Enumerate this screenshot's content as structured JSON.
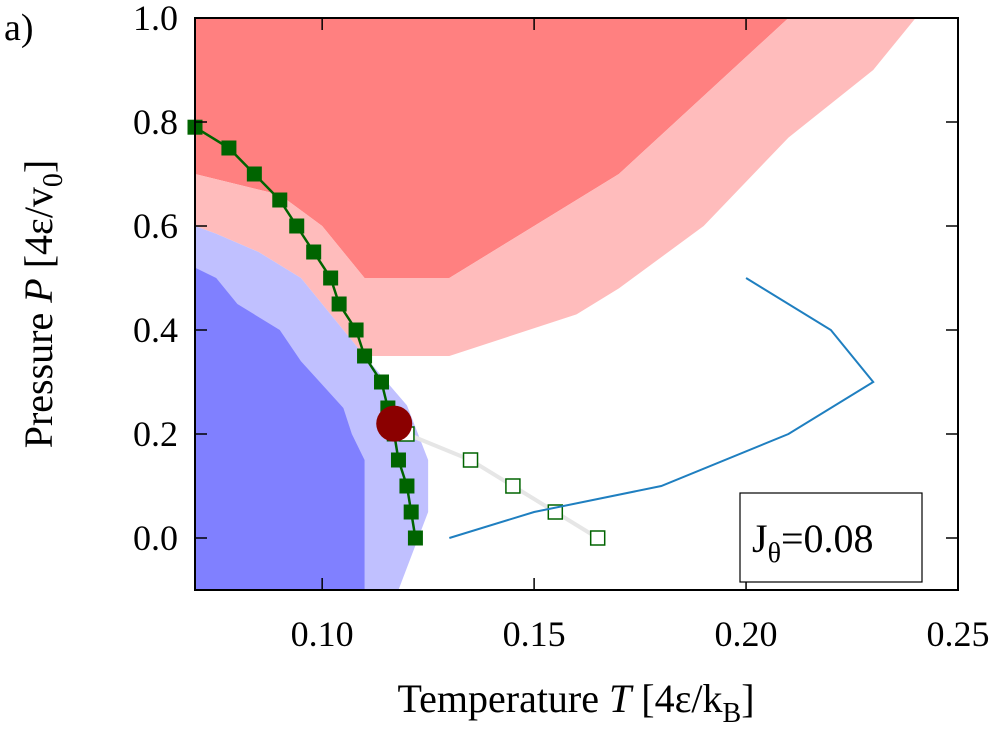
{
  "panel_label": "a)",
  "chart_data": {
    "type": "line",
    "xlabel": "Temperature T [4ε/k_B]",
    "xlabel_parts": {
      "pre": "Temperature ",
      "var": "T",
      "post": " [4ε/k",
      "sub": "B",
      "end": "]"
    },
    "ylabel_parts": {
      "pre": "Pressure ",
      "var": "P",
      "post": " [4ε/v",
      "sub": "0",
      "end": "]"
    },
    "ylabel": "Pressure P [4ε/v_0]",
    "xlim": [
      0.07,
      0.25
    ],
    "ylim": [
      -0.1,
      1.0
    ],
    "xticks": [
      0.1,
      0.15,
      0.2,
      0.25
    ],
    "xtick_labels": [
      "0.10",
      "0.15",
      "0.20",
      "0.25"
    ],
    "yticks": [
      0.0,
      0.2,
      0.4,
      0.6,
      0.8,
      1.0
    ],
    "ytick_labels": [
      "0.0",
      "0.2",
      "0.4",
      "0.6",
      "0.8",
      "1.0"
    ],
    "grid": false,
    "legend": {
      "text_main": "J",
      "text_sub": "θ",
      "text_rest": "=0.08",
      "placement": "bottom-right"
    },
    "regions": [
      {
        "color": "#ff8080",
        "points": [
          [
            0.07,
            1.0
          ],
          [
            0.07,
            0.7
          ],
          [
            0.09,
            0.66
          ],
          [
            0.1,
            0.6
          ],
          [
            0.11,
            0.5
          ],
          [
            0.13,
            0.5
          ],
          [
            0.15,
            0.6
          ],
          [
            0.17,
            0.7
          ],
          [
            0.21,
            1.0
          ]
        ]
      },
      {
        "color": "#ffbcbc",
        "points": [
          [
            0.21,
            1.0
          ],
          [
            0.17,
            0.7
          ],
          [
            0.15,
            0.6
          ],
          [
            0.13,
            0.5
          ],
          [
            0.11,
            0.5
          ],
          [
            0.1,
            0.6
          ],
          [
            0.09,
            0.66
          ],
          [
            0.07,
            0.7
          ],
          [
            0.07,
            0.6
          ],
          [
            0.075,
            0.585
          ],
          [
            0.085,
            0.55
          ],
          [
            0.095,
            0.5
          ],
          [
            0.105,
            0.4
          ],
          [
            0.11,
            0.35
          ],
          [
            0.13,
            0.35
          ],
          [
            0.16,
            0.43
          ],
          [
            0.17,
            0.48
          ],
          [
            0.19,
            0.6
          ],
          [
            0.21,
            0.77
          ],
          [
            0.23,
            0.9
          ],
          [
            0.24,
            1.0
          ]
        ]
      },
      {
        "color": "#c0c0ff",
        "points": [
          [
            0.07,
            0.6
          ],
          [
            0.075,
            0.585
          ],
          [
            0.085,
            0.55
          ],
          [
            0.095,
            0.5
          ],
          [
            0.105,
            0.4
          ],
          [
            0.11,
            0.35
          ],
          [
            0.12,
            0.255
          ],
          [
            0.125,
            0.15
          ],
          [
            0.125,
            0.05
          ],
          [
            0.118,
            -0.1
          ],
          [
            0.07,
            -0.1
          ]
        ]
      },
      {
        "color": "#8080ff",
        "points": [
          [
            0.07,
            0.52
          ],
          [
            0.075,
            0.5
          ],
          [
            0.08,
            0.45
          ],
          [
            0.09,
            0.4
          ],
          [
            0.095,
            0.34
          ],
          [
            0.105,
            0.25
          ],
          [
            0.107,
            0.2
          ],
          [
            0.11,
            0.15
          ],
          [
            0.11,
            -0.1
          ],
          [
            0.07,
            -0.1
          ]
        ]
      }
    ],
    "series": [
      {
        "style": "filled-square",
        "color": "#006400",
        "x": [
          0.07,
          0.078,
          0.084,
          0.09,
          0.094,
          0.098,
          0.102,
          0.104,
          0.108,
          0.11,
          0.114,
          0.1155,
          0.117,
          0.118,
          0.12,
          0.121,
          0.122
        ],
        "y": [
          0.79,
          0.75,
          0.7,
          0.65,
          0.6,
          0.55,
          0.5,
          0.45,
          0.4,
          0.35,
          0.3,
          0.25,
          0.2,
          0.15,
          0.1,
          0.05,
          0.0
        ]
      },
      {
        "style": "open-square",
        "color": "#006400",
        "line_color": "#e6e6e6",
        "x": [
          0.12,
          0.135,
          0.145,
          0.155,
          0.165
        ],
        "y": [
          0.2,
          0.15,
          0.1,
          0.05,
          0.0
        ]
      },
      {
        "style": "line",
        "color": "#1f7fc0",
        "x": [
          0.13,
          0.15,
          0.18,
          0.21,
          0.23,
          0.22,
          0.2
        ],
        "y": [
          0.0,
          0.05,
          0.1,
          0.2,
          0.3,
          0.4,
          0.5
        ]
      },
      {
        "style": "point",
        "color": "#8b0000",
        "x": [
          0.117
        ],
        "y": [
          0.22
        ]
      }
    ]
  }
}
